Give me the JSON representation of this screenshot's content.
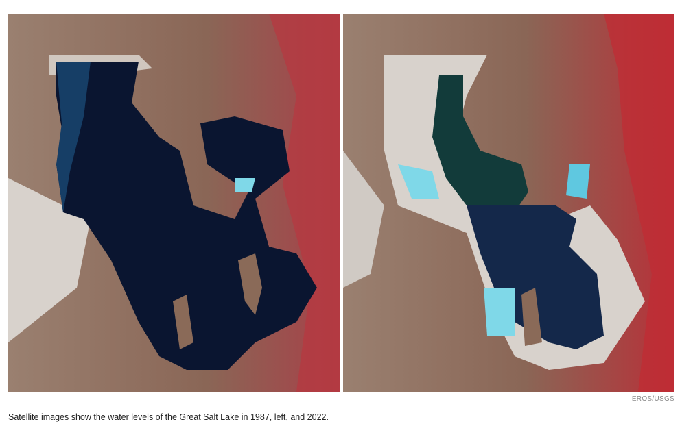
{
  "figure": {
    "images": [
      {
        "label": "Great Salt Lake 1987",
        "position": "left"
      },
      {
        "label": "Great Salt Lake 2022",
        "position": "right"
      }
    ],
    "credit": "EROS/USGS",
    "caption": "Satellite images show the water levels of the Great Salt Lake in 1987, left, and 2022."
  },
  "colors": {
    "land": "#8a6a58",
    "vegetation": "#b8343a",
    "salt_flat": "#d9d4ce",
    "deep_water": "#0b1530",
    "shallow_water": "#1d4a6a",
    "brine_pond": "#7fd8e8"
  }
}
